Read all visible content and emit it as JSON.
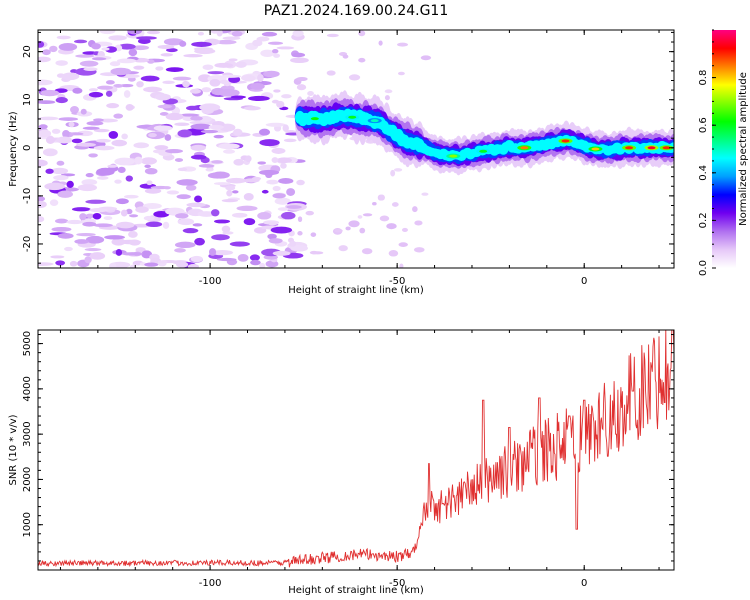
{
  "figure_title": "PAZ1.2024.169.00.24.G11",
  "chart_data": [
    {
      "type": "heatmap",
      "title": "PAZ1.2024.169.00.24.G11",
      "xlabel": "Height of straight line (km)",
      "ylabel": "Frequency (Hz)",
      "xlim": [
        -146,
        24
      ],
      "ylim": [
        -25,
        24.5
      ],
      "x_ticks": [
        -100,
        -50,
        0
      ],
      "y_ticks": [
        -20,
        -10,
        0,
        10,
        20
      ],
      "colorbar": {
        "label": "Normalized spectral amplitude",
        "range": [
          0,
          1
        ],
        "ticks": [
          0.0,
          0.2,
          0.4,
          0.6,
          0.8
        ],
        "colors": [
          "#ffffff",
          "#e6c8f8",
          "#b070f0",
          "#7000f0",
          "#0000ff",
          "#00a0ff",
          "#00ffff",
          "#00ff80",
          "#00ff00",
          "#80ff00",
          "#ffff00",
          "#ff8000",
          "#ff0000",
          "#ff0080"
        ]
      },
      "ridge": [
        {
          "x": -76,
          "y": 6.2
        },
        {
          "x": -70,
          "y": 6.0
        },
        {
          "x": -65,
          "y": 6.6
        },
        {
          "x": -60,
          "y": 6.2
        },
        {
          "x": -55,
          "y": 5.5
        },
        {
          "x": -52,
          "y": 3.5
        },
        {
          "x": -48,
          "y": 1.5
        },
        {
          "x": -44,
          "y": 0.5
        },
        {
          "x": -40,
          "y": -1.0
        },
        {
          "x": -36,
          "y": -1.8
        },
        {
          "x": -32,
          "y": -1.5
        },
        {
          "x": -28,
          "y": -0.8
        },
        {
          "x": -24,
          "y": -0.5
        },
        {
          "x": -20,
          "y": 0.2
        },
        {
          "x": -16,
          "y": 0.0
        },
        {
          "x": -12,
          "y": 0.5
        },
        {
          "x": -8,
          "y": 1.2
        },
        {
          "x": -4,
          "y": 1.5
        },
        {
          "x": 0,
          "y": 0.5
        },
        {
          "x": 4,
          "y": -0.5
        },
        {
          "x": 8,
          "y": -0.3
        },
        {
          "x": 12,
          "y": 0.0
        },
        {
          "x": 16,
          "y": 0.0
        },
        {
          "x": 20,
          "y": 0.0
        },
        {
          "x": 24,
          "y": 0.0
        }
      ]
    },
    {
      "type": "line",
      "xlabel": "Height of straight line (km)",
      "ylabel": "SNR (10 * v/v)",
      "xlim": [
        -146,
        24
      ],
      "ylim": [
        0,
        5300
      ],
      "x_ticks": [
        -100,
        -50,
        0
      ],
      "y_ticks": [
        1000,
        2000,
        3000,
        4000,
        5000
      ],
      "color": "#e03030",
      "trend_points": [
        {
          "x": -146,
          "y": 150
        },
        {
          "x": -80,
          "y": 160
        },
        {
          "x": -72,
          "y": 250
        },
        {
          "x": -60,
          "y": 350
        },
        {
          "x": -50,
          "y": 300
        },
        {
          "x": -46,
          "y": 350
        },
        {
          "x": -44,
          "y": 800
        },
        {
          "x": -42,
          "y": 1500
        },
        {
          "x": -38,
          "y": 1400
        },
        {
          "x": -32,
          "y": 1700
        },
        {
          "x": -26,
          "y": 2000
        },
        {
          "x": -20,
          "y": 2200
        },
        {
          "x": -14,
          "y": 2500
        },
        {
          "x": -8,
          "y": 2700
        },
        {
          "x": -2,
          "y": 2900
        },
        {
          "x": 4,
          "y": 3200
        },
        {
          "x": 10,
          "y": 3600
        },
        {
          "x": 16,
          "y": 4000
        },
        {
          "x": 20,
          "y": 4300
        },
        {
          "x": 24,
          "y": 4400
        }
      ],
      "spikes": [
        {
          "x": -41.5,
          "y": 2350
        },
        {
          "x": -27,
          "y": 3750
        },
        {
          "x": -20,
          "y": 3150
        },
        {
          "x": -12,
          "y": 3800
        },
        {
          "x": -4,
          "y": 3400
        },
        {
          "x": 0,
          "y": 3750
        },
        {
          "x": 13,
          "y": 3950
        },
        {
          "x": 23.5,
          "y": 5300
        }
      ],
      "dips": [
        {
          "x": -2,
          "y": 900
        },
        {
          "x": 8.5,
          "y": 3000
        },
        {
          "x": 21.5,
          "y": 3700
        }
      ]
    }
  ]
}
